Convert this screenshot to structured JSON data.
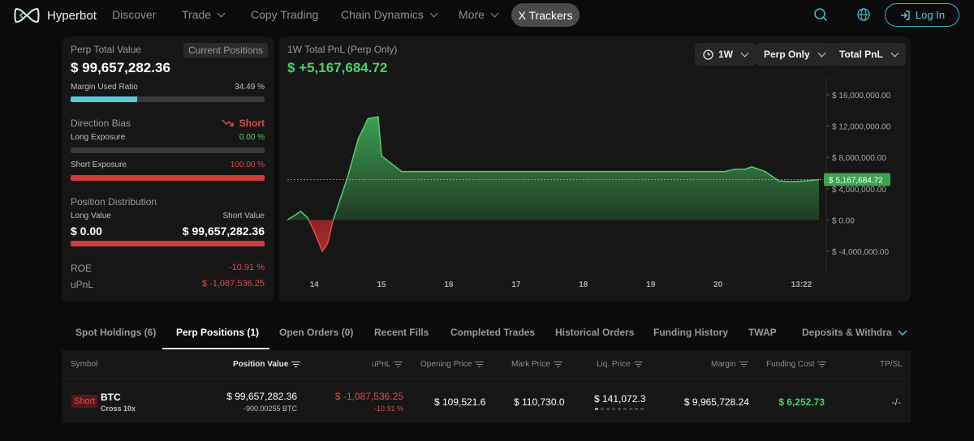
{
  "nav": {
    "brand": "Hyperbot",
    "items": [
      {
        "label": "Discover",
        "has_dropdown": false
      },
      {
        "label": "Trade",
        "has_dropdown": true
      },
      {
        "label": "Copy Trading",
        "has_dropdown": false
      },
      {
        "label": "Chain Dynamics",
        "has_dropdown": true
      },
      {
        "label": "More",
        "has_dropdown": true
      }
    ],
    "active_pill": "X Trackers",
    "icons": [
      "search-icon",
      "globe-icon"
    ],
    "login_label": "Log In"
  },
  "summary": {
    "perp_total_label": "Perp Total Value",
    "current_positions_badge": "Current Positions",
    "perp_total_value": "$ 99,657,282.36",
    "margin_used_label": "Margin Used Ratio",
    "margin_used_value": "34.49 %",
    "margin_used_fraction": 0.3449,
    "direction_bias_label": "Direction Bias",
    "direction_bias_value": "Short",
    "long_exposure_label": "Long Exposure",
    "long_exposure_value": "0.00 %",
    "long_exposure_fraction": 0.0,
    "short_exposure_label": "Short Exposure",
    "short_exposure_value": "100.00 %",
    "short_exposure_fraction": 1.0,
    "position_distribution_label": "Position Distribution",
    "long_value_label": "Long Value",
    "short_value_label": "Short Value",
    "long_value": "$ 0.00",
    "short_value": "$ 99,657,282.36",
    "short_value_fraction": 1.0,
    "roe_label": "ROE",
    "roe_value": "-10.91 %",
    "upnl_label": "uPnL",
    "upnl_value": "$ -1,087,536.25"
  },
  "chart_panel": {
    "title": "1W Total PnL (Perp Only)",
    "value": "$ +5,167,684.72",
    "dropdowns": {
      "period": "1W",
      "scope": "Perp Only",
      "metric": "Total PnL"
    },
    "current_label": "$ 5,167,684.72"
  },
  "chart_data": {
    "type": "area",
    "title": "1W Total PnL (Perp Only)",
    "xlabel": "",
    "ylabel": "",
    "ylim": [
      -4000000,
      16000000
    ],
    "y_ticks": [
      16000000,
      12000000,
      8000000,
      4000000,
      0,
      -4000000
    ],
    "y_tick_labels": [
      "$ 16,000,000.00",
      "$ 12,000,000.00",
      "$ 8,000,000.00",
      "$ 4,000,000.00",
      "$ 0.00",
      "$ -4,000,000.00"
    ],
    "x_ticks": [
      14,
      15,
      16,
      17,
      18,
      19,
      20,
      21.24
    ],
    "x_tick_labels": [
      "14",
      "15",
      "16",
      "17",
      "18",
      "19",
      "20",
      "13:22"
    ],
    "xlim": [
      13.6,
      21.5
    ],
    "reference_line": 5167684.72,
    "grid": false,
    "series": [
      {
        "x": [
          13.6,
          13.8,
          13.9,
          14.0,
          14.12,
          14.2,
          14.27,
          14.5,
          14.65,
          14.8,
          14.95,
          15.0,
          15.3,
          16,
          17,
          18,
          19,
          19.8,
          20.1,
          20.25,
          20.4,
          20.5,
          20.7,
          20.9,
          21.1,
          21.3,
          21.5
        ],
        "y": [
          0,
          1100000,
          300000,
          -1500000,
          -4000000,
          -3000000,
          -300000,
          5600000,
          10300000,
          13000000,
          13200000,
          8200000,
          6200000,
          6200000,
          6200000,
          6200000,
          6200000,
          6200000,
          6200000,
          6500000,
          6500000,
          6800000,
          6200000,
          5000000,
          4900000,
          5000000,
          5167684.72
        ]
      }
    ]
  },
  "tabs": [
    {
      "label": "Spot Holdings (6)"
    },
    {
      "label": "Perp Positions (1)"
    },
    {
      "label": "Open Orders (0)"
    },
    {
      "label": "Recent Fills"
    },
    {
      "label": "Completed Trades"
    },
    {
      "label": "Historical Orders"
    },
    {
      "label": "Funding History"
    },
    {
      "label": "TWAP"
    },
    {
      "label": "Deposits & Withdraw"
    }
  ],
  "table": {
    "headers": [
      "Symbol",
      "Position Value",
      "uPnL",
      "Opening Price",
      "Mark Price",
      "Liq. Price",
      "Margin",
      "Funding Cost",
      "TP/SL"
    ],
    "rows": [
      {
        "side": "Short",
        "symbol": "BTC",
        "margin_mode": "Cross 10x",
        "position_value": "$ 99,657,282.36",
        "position_size": "-900.00255 BTC",
        "upnl": "$ -1,087,536.25",
        "upnl_pct": "-10.91 %",
        "opening_price": "$ 109,521.6",
        "mark_price": "$ 110,730.0",
        "liq_price": "$ 141,072.3",
        "margin": "$ 9,965,728.24",
        "funding_cost": "$ 6,252.73",
        "tpsl": "-/-"
      }
    ]
  },
  "colors": {
    "accent_teal": "#3fb6c4",
    "positive_green": "#4fd06a",
    "negative_red": "#e24b4b",
    "margin_bar": "#5ccad6"
  }
}
